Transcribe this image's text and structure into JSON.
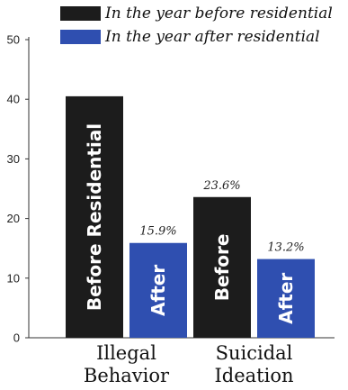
{
  "chart_data": {
    "type": "bar",
    "categories": [
      "Illegal Behavior",
      "Suicidal Ideation"
    ],
    "category_lines": [
      [
        "Illegal",
        "Behavior"
      ],
      [
        "Suicidal",
        "Ideation"
      ]
    ],
    "series": [
      {
        "name": "In the year before residential",
        "color": "#1c1c1c",
        "values": [
          40.5,
          23.6
        ],
        "value_labels": [
          "",
          "23.6%"
        ],
        "bar_labels": [
          "Before Residential",
          "Before"
        ]
      },
      {
        "name": "In the year after residential",
        "color": "#2f4fb0",
        "values": [
          15.9,
          13.2
        ],
        "value_labels": [
          "15.9%",
          "13.2%"
        ],
        "bar_labels": [
          "After",
          "After"
        ]
      }
    ],
    "ylim": [
      0,
      50
    ],
    "yticks": [
      0,
      10,
      20,
      30,
      40,
      50
    ],
    "legend_position": "top",
    "grid": false
  }
}
